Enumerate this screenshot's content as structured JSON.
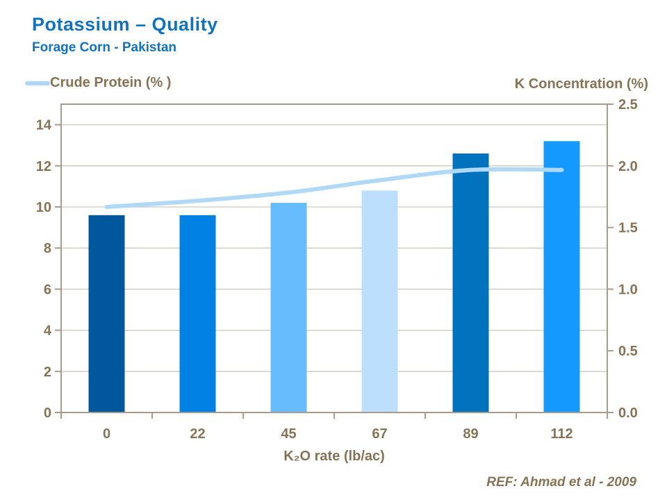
{
  "header": {
    "title": "Potassium – Quality",
    "subtitle": "Forage Corn - Pakistan"
  },
  "legend": {
    "label": "Crude Protein (% )",
    "swatch_color": "#AED7F7"
  },
  "footer": {
    "ref": "REF: Ahmad et al - 2009"
  },
  "colors": {
    "title_blue": "#1173BD",
    "text_brown": "#867355",
    "axis_line": "#A79C8C",
    "gridline": "#CFC7BA"
  },
  "chart_data": {
    "type": "bar",
    "subtype": "combo-bar-line",
    "title": "Potassium – Quality",
    "categories": [
      "0",
      "22",
      "45",
      "67",
      "89",
      "112"
    ],
    "series": [
      {
        "name": "K Concentration (%)",
        "type": "bar",
        "axis": "right",
        "values": [
          1.6,
          1.6,
          1.7,
          1.8,
          2.1,
          2.2
        ],
        "bar_colors": [
          "#00589C",
          "#0081E3",
          "#66BCFC",
          "#BBDFFC",
          "#0072BE",
          "#149AFE"
        ]
      },
      {
        "name": "Crude Protein (%)",
        "type": "line",
        "axis": "left",
        "values": [
          10.0,
          10.3,
          10.7,
          11.3,
          11.8,
          11.8
        ],
        "color": "#B0D9F8",
        "smooth": true
      }
    ],
    "left_axis": {
      "min": 0,
      "max": 15,
      "tick_step": 2,
      "tick_labels": [
        "0",
        "2",
        "4",
        "6",
        "8",
        "10",
        "12",
        "14"
      ],
      "label": "Crude Protein (% )"
    },
    "right_axis": {
      "min": 0,
      "max": 2.5,
      "tick_step": 0.5,
      "tick_labels": [
        "0.0",
        "0.5",
        "1.0",
        "1.5",
        "2.0",
        "2.5"
      ],
      "title": "K Concentration (%)"
    },
    "x_axis": {
      "title": "K₂O rate (lb/ac)"
    },
    "grid": "horizontal",
    "legend_position": "top-left"
  }
}
